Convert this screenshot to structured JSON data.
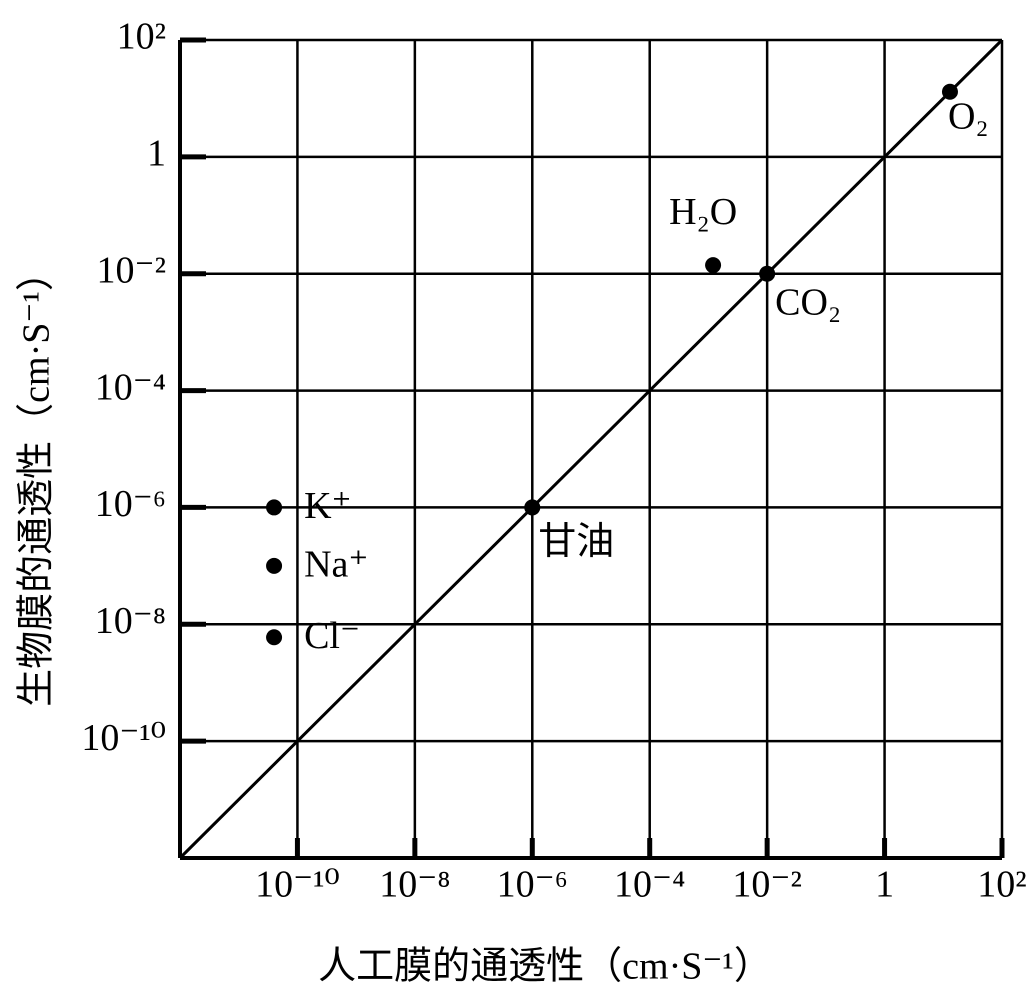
{
  "chart_data": {
    "type": "scatter",
    "x_label": "人工膜的通透性（cm·S⁻¹）",
    "y_label": "生物膜的通透性（cm·S⁻¹）",
    "log_x": true,
    "log_y": true,
    "grid": true,
    "color": "#000000",
    "xlim": [
      1e-12,
      100
    ],
    "ylim": [
      1e-12,
      100
    ],
    "xticks": [
      {
        "value": 1e-10,
        "label": "10⁻¹⁰"
      },
      {
        "value": 1e-08,
        "label": "10⁻⁸"
      },
      {
        "value": 1e-06,
        "label": "10⁻⁶"
      },
      {
        "value": 0.0001,
        "label": "10⁻⁴"
      },
      {
        "value": 0.01,
        "label": "10⁻²"
      },
      1,
      {
        "value": 100,
        "label": "10²"
      }
    ],
    "yticks": [
      {
        "value": 1e-10,
        "label": "10⁻¹⁰"
      },
      {
        "value": 1e-08,
        "label": "10⁻⁸"
      },
      {
        "value": 1e-06,
        "label": "10⁻⁶"
      },
      {
        "value": 0.0001,
        "label": "10⁻⁴"
      },
      {
        "value": 0.01,
        "label": "10⁻²"
      },
      1,
      {
        "value": 100,
        "label": "10²"
      }
    ],
    "points": [
      {
        "label": "O₂",
        "x": 13,
        "y": 13
      },
      {
        "label": "H₂O",
        "x": 0.0012,
        "y": 0.014
      },
      {
        "label": "CO₂",
        "x": 0.01,
        "y": 0.01
      },
      {
        "label": "甘油",
        "x": 1e-06,
        "y": 1e-06
      },
      {
        "label": "K⁺",
        "x": 4e-11,
        "y": 1e-06
      },
      {
        "label": "Na⁺",
        "x": 4e-11,
        "y": 1e-07
      },
      {
        "label": "Cl⁻",
        "x": 4e-11,
        "y": 6e-09
      }
    ]
  }
}
